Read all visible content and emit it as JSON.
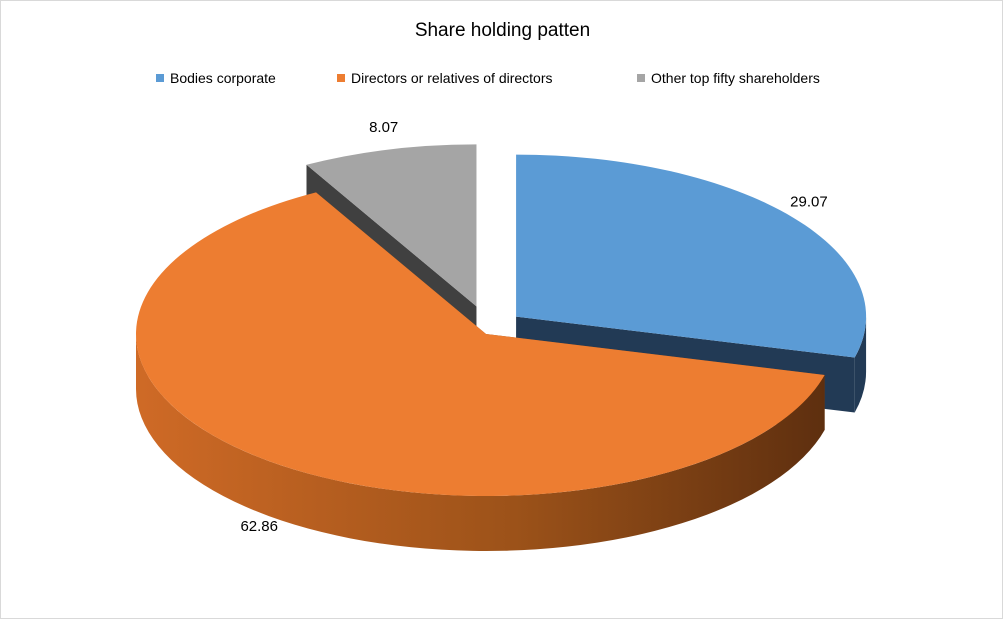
{
  "chart_data": {
    "type": "pie",
    "variant": "3d-exploded",
    "title": "Share holding patten",
    "legend_position": "top",
    "slices": [
      {
        "name": "Bodies corporate",
        "value": 29.07,
        "label": "29.07",
        "color": "#5b9bd5",
        "side_color": "#223a55"
      },
      {
        "name": "Directors or relatives of directors",
        "value": 62.86,
        "label": "62.86",
        "color": "#ed7d31",
        "side_color": "#8a4716"
      },
      {
        "name": "Other top fifty shareholders",
        "value": 8.07,
        "label": "8.07",
        "color": "#a5a5a5",
        "side_color": "#404040"
      }
    ]
  }
}
